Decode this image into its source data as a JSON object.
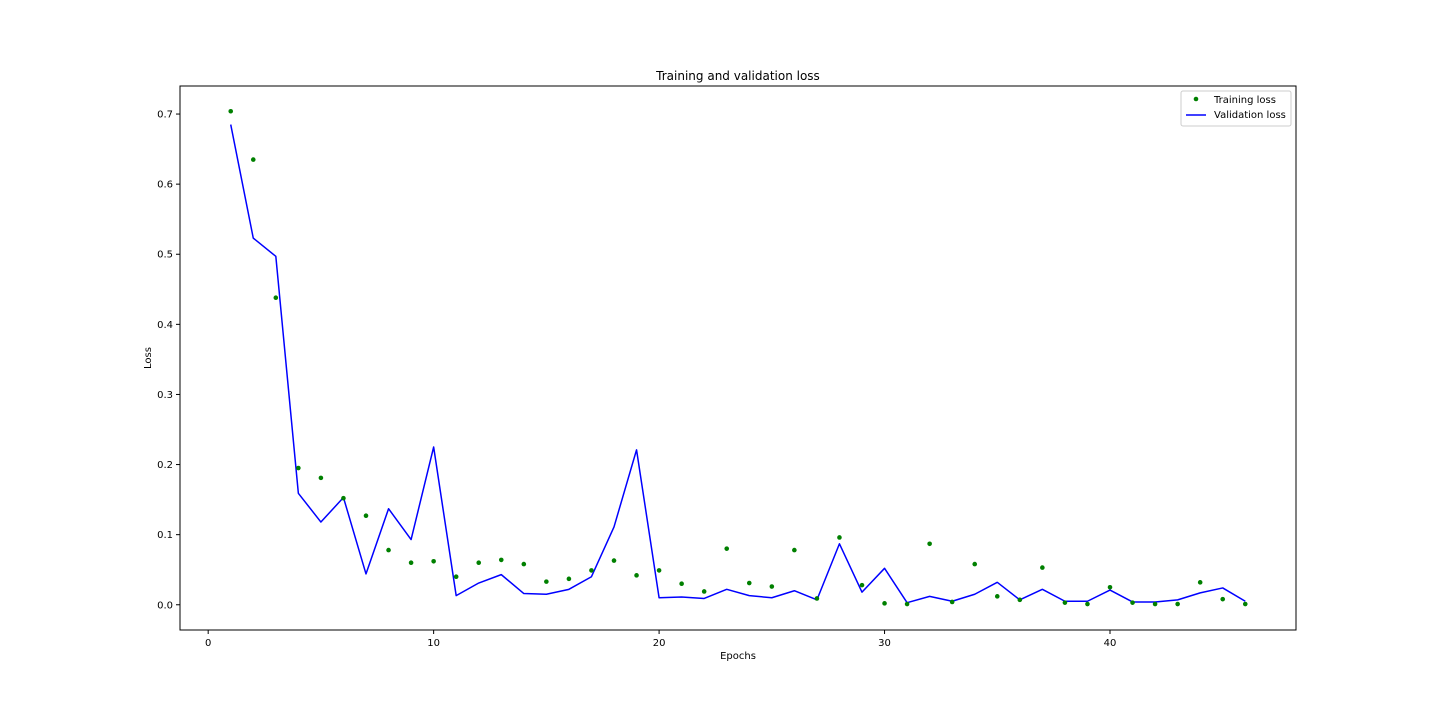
{
  "chart_data": {
    "type": "scatter+line",
    "title": "Training and validation loss",
    "xlabel": "Epochs",
    "ylabel": "Loss",
    "xlim": [
      -1.25,
      48.25
    ],
    "ylim": [
      -0.036,
      0.74
    ],
    "xticks": [
      0,
      10,
      20,
      30,
      40
    ],
    "yticks": [
      0.0,
      0.1,
      0.2,
      0.3,
      0.4,
      0.5,
      0.6,
      0.7
    ],
    "ytick_labels": [
      "0.0",
      "0.1",
      "0.2",
      "0.3",
      "0.4",
      "0.5",
      "0.6",
      "0.7"
    ],
    "grid": false,
    "legend": "top-right",
    "x": [
      1,
      2,
      3,
      4,
      5,
      6,
      7,
      8,
      9,
      10,
      11,
      12,
      13,
      14,
      15,
      16,
      17,
      18,
      19,
      20,
      21,
      22,
      23,
      24,
      25,
      26,
      27,
      28,
      29,
      30,
      31,
      32,
      33,
      34,
      35,
      36,
      37,
      38,
      39,
      40,
      41,
      42,
      43,
      44,
      45,
      46
    ],
    "series": [
      {
        "name": "Training loss",
        "kind": "scatter",
        "color": "#008000",
        "values": [
          0.704,
          0.635,
          0.438,
          0.195,
          0.181,
          0.152,
          0.127,
          0.078,
          0.06,
          0.062,
          0.04,
          0.06,
          0.064,
          0.058,
          0.033,
          0.037,
          0.049,
          0.063,
          0.042,
          0.049,
          0.03,
          0.019,
          0.08,
          0.031,
          0.026,
          0.078,
          0.009,
          0.096,
          0.028,
          0.002,
          0.001,
          0.087,
          0.004,
          0.058,
          0.012,
          0.007,
          0.053,
          0.003,
          0.001,
          0.025,
          0.003,
          0.001,
          0.001,
          0.032,
          0.008,
          0.001
        ]
      },
      {
        "name": "Validation loss",
        "kind": "line",
        "color": "#0000ff",
        "values": [
          0.685,
          0.523,
          0.497,
          0.159,
          0.118,
          0.153,
          0.044,
          0.137,
          0.093,
          0.225,
          0.013,
          0.031,
          0.043,
          0.016,
          0.015,
          0.022,
          0.04,
          0.111,
          0.221,
          0.01,
          0.011,
          0.009,
          0.022,
          0.013,
          0.01,
          0.02,
          0.007,
          0.087,
          0.018,
          0.052,
          0.003,
          0.012,
          0.005,
          0.015,
          0.032,
          0.007,
          0.022,
          0.005,
          0.005,
          0.021,
          0.004,
          0.004,
          0.007,
          0.017,
          0.024,
          0.005
        ]
      }
    ]
  }
}
